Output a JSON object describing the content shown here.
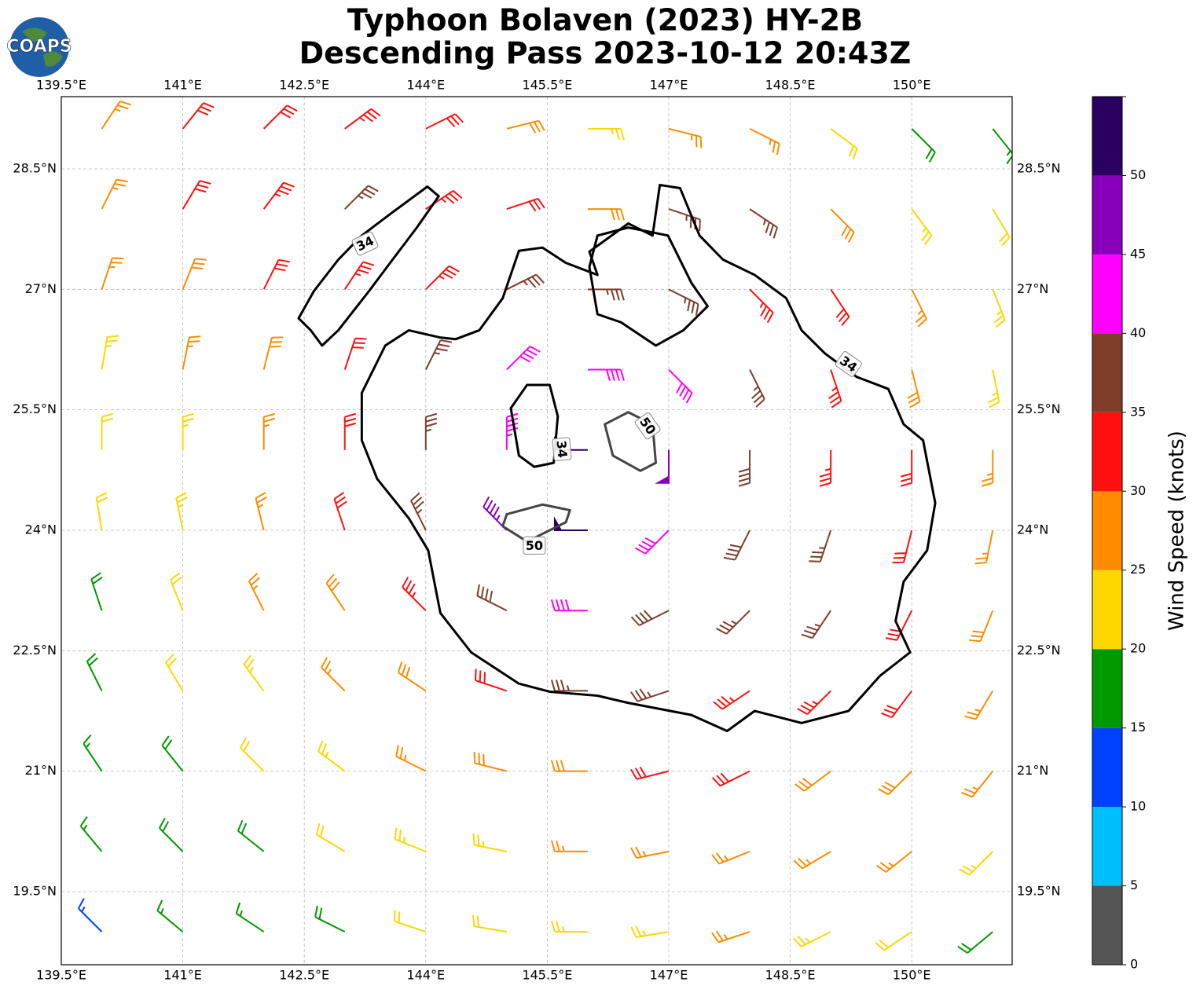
{
  "chart_data": {
    "type": "barbs",
    "logo": "COAPS",
    "title": "Typhoon Bolaven (2023) HY-2B",
    "subtitle": "Descending Pass 2023-10-12 20:43Z",
    "xlim": [
      139.5,
      151.24
    ],
    "ylim": [
      18.59,
      29.4
    ],
    "xticks": [
      {
        "value": 139.5,
        "label": "139.5°E"
      },
      {
        "value": 141,
        "label": "141°E"
      },
      {
        "value": 142.5,
        "label": "142.5°E"
      },
      {
        "value": 144,
        "label": "144°E"
      },
      {
        "value": 145.5,
        "label": "145.5°E"
      },
      {
        "value": 147,
        "label": "147°E"
      },
      {
        "value": 148.5,
        "label": "148.5°E"
      },
      {
        "value": 150,
        "label": "150°E"
      }
    ],
    "yticks": [
      {
        "value": 28.5,
        "label": "28.5°N"
      },
      {
        "value": 27,
        "label": "27°N"
      },
      {
        "value": 25.5,
        "label": "25.5°N"
      },
      {
        "value": 24,
        "label": "24°N"
      },
      {
        "value": 22.5,
        "label": "22.5°N"
      },
      {
        "value": 21,
        "label": "21°N"
      },
      {
        "value": 19.5,
        "label": "19.5°N"
      }
    ],
    "grid": true,
    "barbs": {
      "lons": [
        140,
        141,
        142,
        143,
        144,
        145,
        146,
        147,
        148,
        149,
        150,
        151
      ],
      "lats": [
        29,
        28,
        27,
        26,
        25,
        24,
        23,
        22,
        21,
        20,
        19
      ],
      "speeds": [
        [
          27,
          31,
          32,
          33,
          32,
          29,
          24,
          26,
          27,
          22,
          18,
          17
        ],
        [
          27,
          31,
          33,
          36,
          34,
          32,
          29,
          35,
          36,
          28,
          23,
          21
        ],
        [
          26,
          29,
          32,
          33,
          34,
          36,
          37,
          37,
          34,
          31,
          27,
          23
        ],
        [
          24,
          27,
          29,
          32,
          35,
          41,
          42,
          40,
          37,
          33,
          29,
          24
        ],
        [
          22,
          24,
          27,
          31,
          37,
          43,
          52,
          48,
          38,
          34,
          30,
          26
        ],
        [
          21,
          23,
          26,
          31,
          36,
          47,
          50,
          42,
          38,
          35,
          32,
          27
        ],
        [
          19,
          22,
          25,
          28,
          33,
          38,
          41,
          39,
          37,
          35,
          32,
          28
        ],
        [
          18,
          21,
          23,
          26,
          29,
          32,
          35,
          36,
          34,
          33,
          31,
          27
        ],
        [
          17,
          19,
          22,
          24,
          26,
          28,
          29,
          31,
          31,
          29,
          28,
          26
        ],
        [
          16,
          18,
          19,
          21,
          23,
          24,
          26,
          27,
          27,
          26,
          25,
          23
        ],
        [
          14,
          16,
          17,
          19,
          20,
          22,
          23,
          24,
          25,
          24,
          22,
          19
        ]
      ]
    },
    "contours": [
      {
        "level": 34,
        "color": "#000000",
        "lons": [
          143.5,
          143.79,
          144.18,
          144.37,
          144.66,
          144.95,
          145.15,
          145.44,
          145.73,
          146.12,
          146.02,
          146.5,
          146.8,
          146.89,
          147.14,
          147.38,
          147.67,
          148.06,
          148.45,
          148.64,
          148.93,
          149.32,
          149.71,
          149.9,
          150.14,
          150.29,
          150.19,
          149.9,
          149.8,
          149.98,
          149.61,
          149.22,
          148.64,
          148.06,
          147.72,
          147.28,
          146.5,
          146.12,
          145.53,
          145.15,
          144.56,
          144.18,
          144.03,
          143.79,
          143.4,
          143.21,
          143.21
        ],
        "lats": [
          26.3,
          26.49,
          26.4,
          26.38,
          26.49,
          26.89,
          27.48,
          27.52,
          27.33,
          27.18,
          27.47,
          27.82,
          27.67,
          28.3,
          28.26,
          27.67,
          27.37,
          27.18,
          26.89,
          26.49,
          26.2,
          25.91,
          25.76,
          25.32,
          25.12,
          24.34,
          23.75,
          23.36,
          22.87,
          22.48,
          22.19,
          21.75,
          21.6,
          21.75,
          21.5,
          21.7,
          21.85,
          21.94,
          21.99,
          22.09,
          22.48,
          22.97,
          23.75,
          24.15,
          24.64,
          25.12,
          25.71
        ]
      },
      {
        "level": 34,
        "color": "#000000",
        "lons": [
          146.12,
          146.5,
          146.99,
          147.28,
          147.48,
          147.18,
          146.84,
          146.41,
          146.12,
          146.02
        ],
        "lats": [
          27.67,
          27.77,
          27.67,
          27.08,
          26.79,
          26.49,
          26.3,
          26.59,
          26.69,
          27.28
        ]
      },
      {
        "level": 34,
        "color": "#000000",
        "lons": [
          142.43,
          142.62,
          142.92,
          143.21,
          143.59,
          144.02,
          144.16,
          143.89,
          143.59,
          143.3,
          142.92,
          142.72,
          142.58
        ],
        "lats": [
          26.64,
          26.98,
          27.37,
          27.67,
          27.96,
          28.28,
          28.16,
          27.77,
          27.37,
          26.98,
          26.49,
          26.3,
          26.49
        ]
      },
      {
        "level": 34,
        "color": "#000000",
        "lons": [
          145.05,
          145.25,
          145.53,
          145.63,
          145.58,
          145.34,
          145.15
        ],
        "lats": [
          25.52,
          25.81,
          25.81,
          25.42,
          24.84,
          24.79,
          24.93
        ]
      },
      {
        "level": 50,
        "color": "#444444",
        "lons": [
          146.21,
          146.5,
          146.8,
          146.84,
          146.65,
          146.31
        ],
        "lats": [
          25.32,
          25.47,
          25.32,
          24.84,
          24.74,
          24.93
        ]
      },
      {
        "level": 50,
        "color": "#444444",
        "lons": [
          145.0,
          145.44,
          145.78,
          145.73,
          145.25,
          144.95
        ],
        "lats": [
          24.2,
          24.32,
          24.25,
          24.1,
          23.86,
          24.05
        ]
      }
    ],
    "contour_labels": [
      {
        "value": 34,
        "lon": 143.25,
        "lat": 27.57,
        "angle": -25
      },
      {
        "value": 34,
        "lon": 149.22,
        "lat": 26.07,
        "angle": 35
      },
      {
        "value": 34,
        "lon": 145.68,
        "lat": 25.01,
        "angle": 85
      },
      {
        "value": 50,
        "lon": 146.74,
        "lat": 25.3,
        "angle": 55
      },
      {
        "value": 50,
        "lon": 145.34,
        "lat": 23.81,
        "angle": 0
      }
    ],
    "colorbar": {
      "label": "Wind Speed (knots)",
      "bounds": [
        0,
        5,
        10,
        15,
        20,
        25,
        30,
        35,
        40,
        45,
        50,
        55
      ],
      "colors": [
        "#555555",
        "#00bfff",
        "#0040ff",
        "#009900",
        "#ffd700",
        "#ff8c00",
        "#ff1010",
        "#803d2a",
        "#ff00ff",
        "#8800bb",
        "#2a0060"
      ],
      "ticks": [
        0,
        5,
        10,
        15,
        20,
        25,
        30,
        35,
        40,
        45,
        50
      ]
    }
  }
}
